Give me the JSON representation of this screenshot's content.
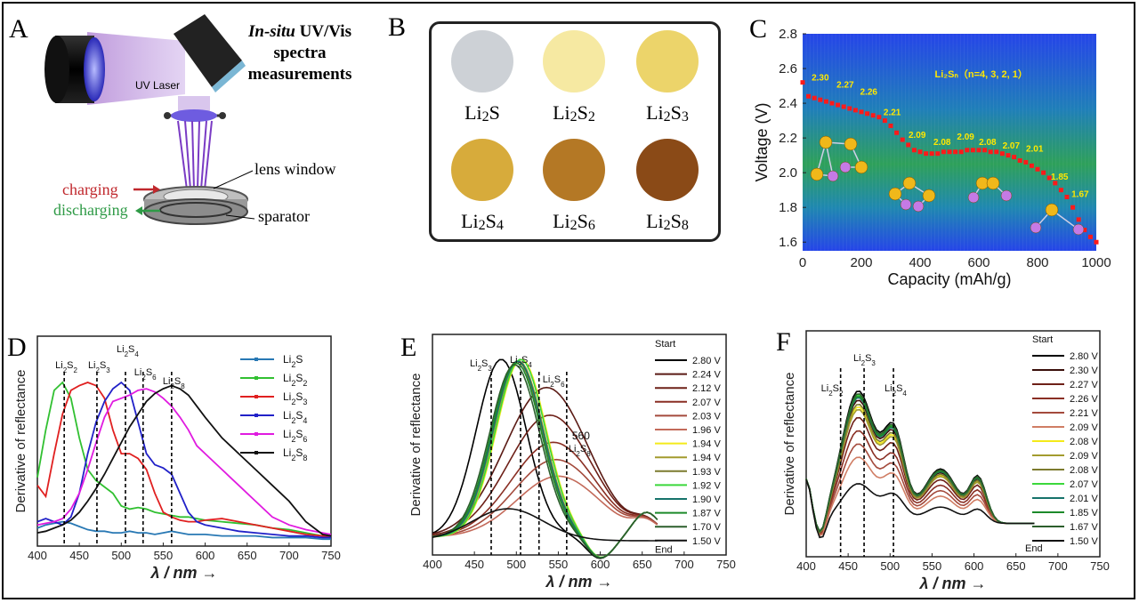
{
  "panels": {
    "a": {
      "letter": "A",
      "title_line1": "In-situ",
      "title_line1b": "UV/Vis",
      "title_line2": "spectra",
      "title_line3": "measurements",
      "laser_label": "UV Laser",
      "lens_label": "lens window",
      "charging": "charging",
      "discharging": "discharging",
      "separator": "sparator",
      "colors": {
        "charging": "#c0282d",
        "discharging": "#2e9a46"
      }
    },
    "b": {
      "letter": "B",
      "swatches": [
        {
          "label": "Li2S",
          "color": "#cdd1d6"
        },
        {
          "label": "Li2S2",
          "color": "#f6e9a2"
        },
        {
          "label": "Li2S3",
          "color": "#ecd46a"
        },
        {
          "label": "Li2S4",
          "color": "#d7ab3b"
        },
        {
          "label": "Li2S6",
          "color": "#b47825"
        },
        {
          "label": "Li2S8",
          "color": "#8a4a17"
        }
      ]
    },
    "c": {
      "letter": "C",
      "formula": "Li₂Sₙ（n=4, 3, 2, 1）"
    },
    "d": {
      "letter": "D"
    },
    "e": {
      "letter": "E",
      "annot_560": "560"
    },
    "f": {
      "letter": "F"
    }
  },
  "chart_data": [
    {
      "id": "C",
      "type": "scatter",
      "xlabel": "Capacity (mAh/g)",
      "ylabel": "Voltage (V)",
      "xlim": [
        0,
        1000
      ],
      "ylim": [
        1.55,
        2.8
      ],
      "xticks": [
        0,
        200,
        400,
        600,
        800,
        1000
      ],
      "yticks": [
        1.6,
        1.8,
        2.0,
        2.2,
        2.4,
        2.6,
        2.8
      ],
      "x": [
        0,
        20,
        40,
        60,
        80,
        100,
        120,
        140,
        160,
        180,
        200,
        220,
        240,
        260,
        280,
        300,
        320,
        340,
        360,
        380,
        400,
        420,
        440,
        460,
        480,
        500,
        520,
        540,
        560,
        580,
        600,
        620,
        640,
        660,
        680,
        700,
        720,
        740,
        760,
        780,
        800,
        820,
        840,
        860,
        880,
        900,
        920,
        940,
        960,
        980,
        1000
      ],
      "y": [
        2.52,
        2.44,
        2.43,
        2.42,
        2.41,
        2.4,
        2.39,
        2.38,
        2.37,
        2.36,
        2.35,
        2.34,
        2.33,
        2.32,
        2.3,
        2.27,
        2.23,
        2.19,
        2.16,
        2.13,
        2.12,
        2.11,
        2.11,
        2.11,
        2.12,
        2.12,
        2.12,
        2.12,
        2.13,
        2.13,
        2.13,
        2.13,
        2.12,
        2.12,
        2.11,
        2.1,
        2.09,
        2.07,
        2.06,
        2.04,
        2.02,
        2.0,
        1.97,
        1.94,
        1.9,
        1.86,
        1.8,
        1.73,
        1.67,
        1.63,
        1.6
      ],
      "annotations": [
        {
          "text": "2.30",
          "x": 60,
          "y": 2.53
        },
        {
          "text": "2.27",
          "x": 145,
          "y": 2.49
        },
        {
          "text": "2.26",
          "x": 225,
          "y": 2.45
        },
        {
          "text": "2.21",
          "x": 305,
          "y": 2.33
        },
        {
          "text": "2.09",
          "x": 390,
          "y": 2.2
        },
        {
          "text": "2.08",
          "x": 475,
          "y": 2.16
        },
        {
          "text": "2.09",
          "x": 555,
          "y": 2.19
        },
        {
          "text": "2.08",
          "x": 630,
          "y": 2.16
        },
        {
          "text": "2.07",
          "x": 710,
          "y": 2.14
        },
        {
          "text": "2.01",
          "x": 790,
          "y": 2.12
        },
        {
          "text": "1.85",
          "x": 875,
          "y": 1.96
        },
        {
          "text": "1.67",
          "x": 945,
          "y": 1.86
        }
      ]
    },
    {
      "id": "D",
      "type": "line",
      "xlabel": "λ / nm →",
      "ylabel": "Derivative of reflectance",
      "xlim": [
        400,
        750
      ],
      "xticks": [
        400,
        450,
        500,
        550,
        600,
        650,
        700,
        750
      ],
      "x": [
        400,
        410,
        420,
        430,
        440,
        450,
        460,
        470,
        480,
        490,
        500,
        510,
        520,
        530,
        540,
        550,
        560,
        570,
        580,
        590,
        600,
        620,
        640,
        660,
        680,
        700,
        720,
        740,
        750
      ],
      "series": [
        {
          "name": "Li2S",
          "color": "#2878b4",
          "values": [
            0.08,
            0.1,
            0.11,
            0.12,
            0.11,
            0.09,
            0.07,
            0.06,
            0.06,
            0.05,
            0.05,
            0.06,
            0.05,
            0.05,
            0.04,
            0.05,
            0.06,
            0.05,
            0.04,
            0.04,
            0.04,
            0.03,
            0.03,
            0.03,
            0.02,
            0.02,
            0.02,
            0.01,
            0.01
          ]
        },
        {
          "name": "Li2S2",
          "color": "#31c031",
          "values": [
            0.4,
            0.7,
            0.95,
            1.0,
            0.9,
            0.65,
            0.45,
            0.38,
            0.34,
            0.3,
            0.22,
            0.2,
            0.21,
            0.2,
            0.18,
            0.17,
            0.16,
            0.15,
            0.15,
            0.14,
            0.13,
            0.12,
            0.11,
            0.1,
            0.08,
            0.07,
            0.05,
            0.03,
            0.02
          ]
        },
        {
          "name": "Li2S3",
          "color": "#e02020",
          "values": [
            0.35,
            0.28,
            0.55,
            0.8,
            0.95,
            0.98,
            1.0,
            0.98,
            0.9,
            0.7,
            0.55,
            0.55,
            0.52,
            0.45,
            0.3,
            0.18,
            0.15,
            0.13,
            0.12,
            0.12,
            0.13,
            0.14,
            0.12,
            0.1,
            0.08,
            0.06,
            0.04,
            0.03,
            0.02
          ]
        },
        {
          "name": "Li2S4",
          "color": "#2121c8",
          "values": [
            0.12,
            0.14,
            0.12,
            0.1,
            0.15,
            0.3,
            0.55,
            0.75,
            0.88,
            0.96,
            1.0,
            0.95,
            0.75,
            0.55,
            0.48,
            0.46,
            0.42,
            0.3,
            0.18,
            0.12,
            0.1,
            0.08,
            0.06,
            0.05,
            0.04,
            0.03,
            0.03,
            0.02,
            0.02
          ]
        },
        {
          "name": "Li2S6",
          "color": "#e01be0",
          "values": [
            0.1,
            0.11,
            0.12,
            0.14,
            0.2,
            0.3,
            0.45,
            0.62,
            0.78,
            0.88,
            0.9,
            0.92,
            0.95,
            0.96,
            0.94,
            0.9,
            0.85,
            0.78,
            0.7,
            0.6,
            0.55,
            0.45,
            0.35,
            0.25,
            0.15,
            0.1,
            0.07,
            0.05,
            0.04
          ]
        },
        {
          "name": "Li2S8",
          "color": "#111111",
          "values": [
            0.05,
            0.06,
            0.08,
            0.1,
            0.13,
            0.18,
            0.25,
            0.33,
            0.42,
            0.52,
            0.62,
            0.72,
            0.8,
            0.88,
            0.93,
            0.96,
            0.98,
            0.96,
            0.92,
            0.85,
            0.78,
            0.65,
            0.55,
            0.45,
            0.35,
            0.25,
            0.12,
            0.04,
            0.03
          ]
        }
      ],
      "markers": [
        {
          "x": 432,
          "label": "Li2S2"
        },
        {
          "x": 471,
          "label": "Li2S3"
        },
        {
          "x": 505,
          "label": "Li2S4"
        },
        {
          "x": 526,
          "label": "Li2S6"
        },
        {
          "x": 560,
          "label": "Li2S8"
        }
      ]
    },
    {
      "id": "E",
      "type": "line",
      "xlabel": "λ / nm →",
      "ylabel": "Derivative of reflectance",
      "xlim": [
        400,
        750
      ],
      "xticks": [
        400,
        450,
        500,
        550,
        600,
        650,
        700,
        750
      ],
      "legend_title_start": "Start",
      "legend_title_end": "End",
      "series": [
        {
          "name": "2.80 V",
          "color": "#000000",
          "peak": 482,
          "amp": 1.0
        },
        {
          "name": "2.24 V",
          "color": "#5a1a14",
          "peak": 486,
          "amp": 0.99
        },
        {
          "name": "2.12 V",
          "color": "#6e2018",
          "peak": 490,
          "amp": 0.98
        },
        {
          "name": "2.07 V",
          "color": "#8a2f24",
          "peak": 494,
          "amp": 0.97
        },
        {
          "name": "2.03 V",
          "color": "#a44a3c",
          "peak": 497,
          "amp": 0.97
        },
        {
          "name": "1.96 V",
          "color": "#c36a5a",
          "peak": 500,
          "amp": 0.98
        },
        {
          "name": "1.94 V",
          "color": "#f4ea1a",
          "peak": 506,
          "amp": 1.0
        },
        {
          "name": "1.94 V",
          "color": "#a39b2e",
          "peak": 503,
          "amp": 0.99
        },
        {
          "name": "1.93 V",
          "color": "#7c7a2e",
          "peak": 501,
          "amp": 0.99
        },
        {
          "name": "1.92 V",
          "color": "#3bd83b",
          "peak": 505,
          "amp": 1.0
        },
        {
          "name": "1.90 V",
          "color": "#16736b",
          "peak": 502,
          "amp": 0.99
        },
        {
          "name": "1.87 V",
          "color": "#1c8a2a",
          "peak": 500,
          "amp": 0.98
        },
        {
          "name": "1.70 V",
          "color": "#2c5e2c",
          "peak": 498,
          "amp": 0.97
        },
        {
          "name": "1.50 V",
          "color": "#111111",
          "peak": 480,
          "amp": 0.98
        }
      ],
      "markers": [
        {
          "x": 470,
          "label": "Li2S3"
        },
        {
          "x": 505,
          "label": "Li2S4"
        },
        {
          "x": 527,
          "label": "Li2S6"
        },
        {
          "x": 560,
          "label": "Li2S8"
        }
      ]
    },
    {
      "id": "F",
      "type": "line",
      "xlabel": "λ / nm →",
      "ylabel": "Derivative of reflectance",
      "xlim": [
        400,
        750
      ],
      "xticks": [
        400,
        450,
        500,
        550,
        600,
        650,
        700,
        750
      ],
      "legend_title_start": "Start",
      "legend_title_end": "End",
      "series": [
        {
          "name": "2.80 V",
          "color": "#000000",
          "amp": 1.0
        },
        {
          "name": "2.30 V",
          "color": "#3a0e0a",
          "amp": 0.93
        },
        {
          "name": "2.27 V",
          "color": "#6e2018",
          "amp": 0.8
        },
        {
          "name": "2.26 V",
          "color": "#8a2f24",
          "amp": 0.7
        },
        {
          "name": "2.21 V",
          "color": "#a44a3c",
          "amp": 0.6
        },
        {
          "name": "2.09 V",
          "color": "#d07d64",
          "amp": 0.5
        },
        {
          "name": "2.08 V",
          "color": "#f4ea1a",
          "amp": 0.88
        },
        {
          "name": "2.09 V",
          "color": "#a39b2e",
          "amp": 0.86
        },
        {
          "name": "2.08 V",
          "color": "#7c7a2e",
          "amp": 0.9
        },
        {
          "name": "2.07 V",
          "color": "#3bd83b",
          "amp": 0.97
        },
        {
          "name": "2.01 V",
          "color": "#16736b",
          "amp": 0.95
        },
        {
          "name": "1.85 V",
          "color": "#1c8a2a",
          "amp": 0.96
        },
        {
          "name": "1.67 V",
          "color": "#2c5e2c",
          "amp": 0.98
        },
        {
          "name": "1.50 V",
          "color": "#111111",
          "amp": 0.3
        }
      ],
      "markers": [
        {
          "x": 441,
          "label": "Li2S2"
        },
        {
          "x": 469,
          "label": "Li2S3"
        },
        {
          "x": 504,
          "label": "Li2S4"
        }
      ]
    }
  ]
}
